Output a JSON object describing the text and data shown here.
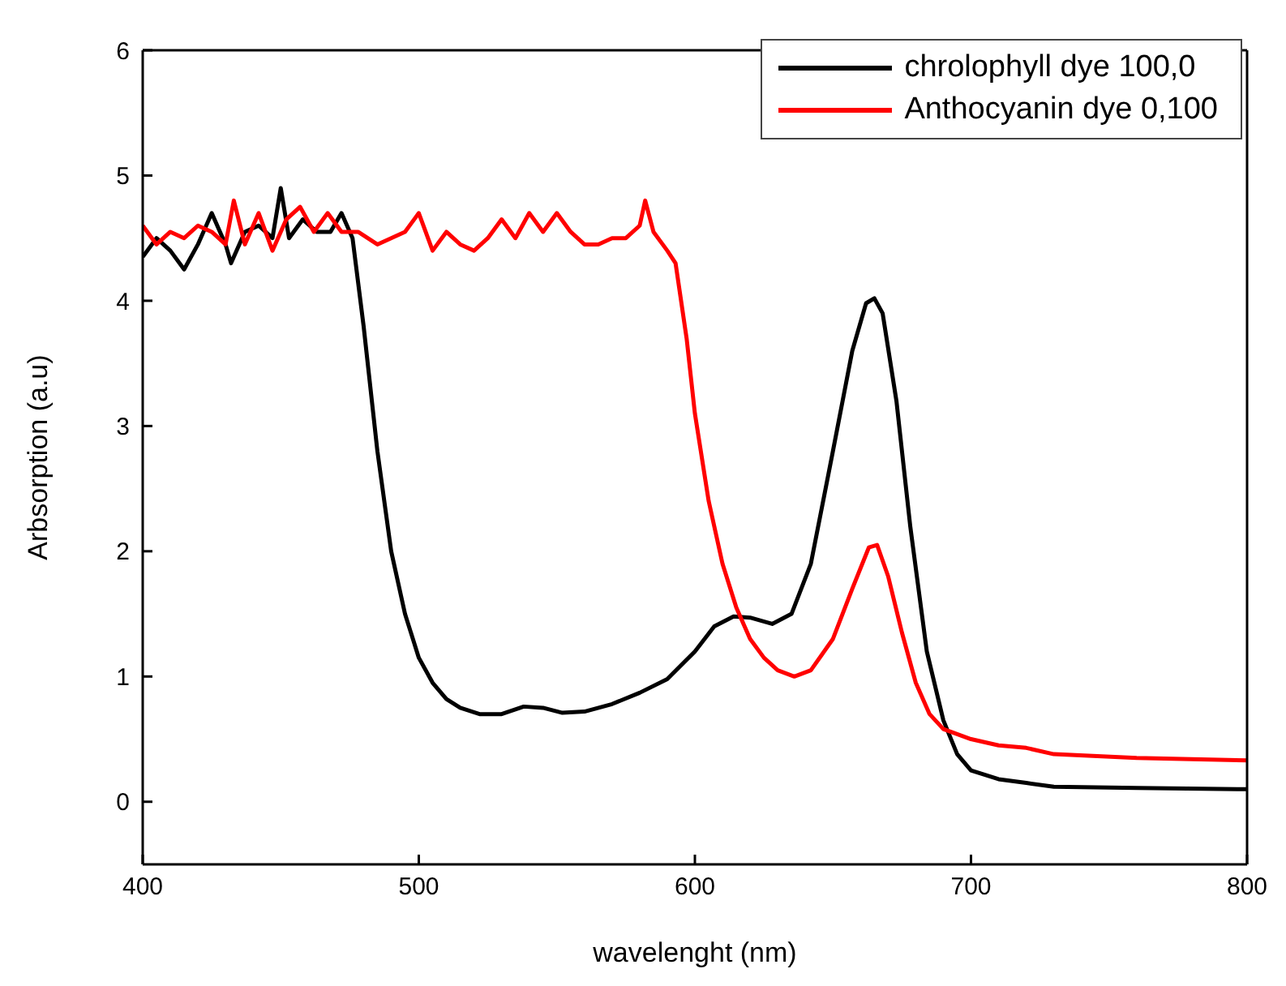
{
  "chart_data": {
    "type": "line",
    "xlabel": "wavelenght (nm)",
    "ylabel": "Arbsorption (a.u)",
    "xlim": [
      400,
      800
    ],
    "xticks": [
      400,
      500,
      600,
      700,
      800
    ],
    "ylim": [
      -0.5,
      6
    ],
    "yticks": [
      0,
      1,
      2,
      3,
      4,
      5,
      6
    ],
    "legend": "top right",
    "marker": "none",
    "line_style": "solid",
    "series": [
      {
        "name": "chrolophyll dye 100,0",
        "color": "#000000",
        "x": [
          400,
          405,
          410,
          415,
          420,
          425,
          430,
          432,
          437,
          442,
          447,
          450,
          453,
          458,
          463,
          468,
          472,
          476,
          480,
          485,
          490,
          495,
          500,
          505,
          510,
          515,
          522,
          530,
          538,
          545,
          552,
          560,
          570,
          580,
          590,
          600,
          607,
          614,
          620,
          628,
          635,
          642,
          650,
          657,
          662,
          665,
          668,
          673,
          678,
          684,
          690,
          695,
          700,
          710,
          720,
          730,
          760,
          800
        ],
        "values": [
          4.35,
          4.5,
          4.4,
          4.25,
          4.45,
          4.7,
          4.45,
          4.3,
          4.55,
          4.6,
          4.5,
          4.9,
          4.5,
          4.65,
          4.55,
          4.55,
          4.7,
          4.5,
          3.8,
          2.8,
          2.0,
          1.5,
          1.15,
          0.95,
          0.82,
          0.75,
          0.7,
          0.7,
          0.76,
          0.75,
          0.71,
          0.72,
          0.78,
          0.87,
          0.98,
          1.2,
          1.4,
          1.48,
          1.47,
          1.42,
          1.5,
          1.9,
          2.8,
          3.6,
          3.98,
          4.02,
          3.9,
          3.2,
          2.2,
          1.2,
          0.65,
          0.38,
          0.25,
          0.18,
          0.15,
          0.12,
          0.11,
          0.1
        ]
      },
      {
        "name": "Anthocyanin dye 0,100",
        "color": "#ff0000",
        "x": [
          400,
          405,
          410,
          415,
          420,
          425,
          430,
          433,
          437,
          442,
          447,
          452,
          457,
          462,
          467,
          472,
          478,
          485,
          490,
          495,
          500,
          505,
          510,
          515,
          520,
          525,
          530,
          535,
          540,
          545,
          550,
          555,
          560,
          565,
          570,
          575,
          580,
          582,
          585,
          590,
          593,
          597,
          600,
          605,
          610,
          615,
          620,
          625,
          630,
          636,
          642,
          650,
          657,
          663,
          666,
          670,
          675,
          680,
          685,
          690,
          700,
          710,
          720,
          730,
          760,
          800
        ],
        "values": [
          4.6,
          4.45,
          4.55,
          4.5,
          4.6,
          4.55,
          4.45,
          4.8,
          4.45,
          4.7,
          4.4,
          4.65,
          4.75,
          4.55,
          4.7,
          4.55,
          4.55,
          4.45,
          4.5,
          4.55,
          4.7,
          4.4,
          4.55,
          4.45,
          4.4,
          4.5,
          4.65,
          4.5,
          4.7,
          4.55,
          4.7,
          4.55,
          4.45,
          4.45,
          4.5,
          4.5,
          4.6,
          4.8,
          4.55,
          4.4,
          4.3,
          3.7,
          3.1,
          2.4,
          1.9,
          1.55,
          1.3,
          1.15,
          1.05,
          1.0,
          1.05,
          1.3,
          1.7,
          2.03,
          2.05,
          1.8,
          1.35,
          0.95,
          0.7,
          0.58,
          0.5,
          0.45,
          0.43,
          0.38,
          0.35,
          0.33
        ]
      }
    ]
  }
}
